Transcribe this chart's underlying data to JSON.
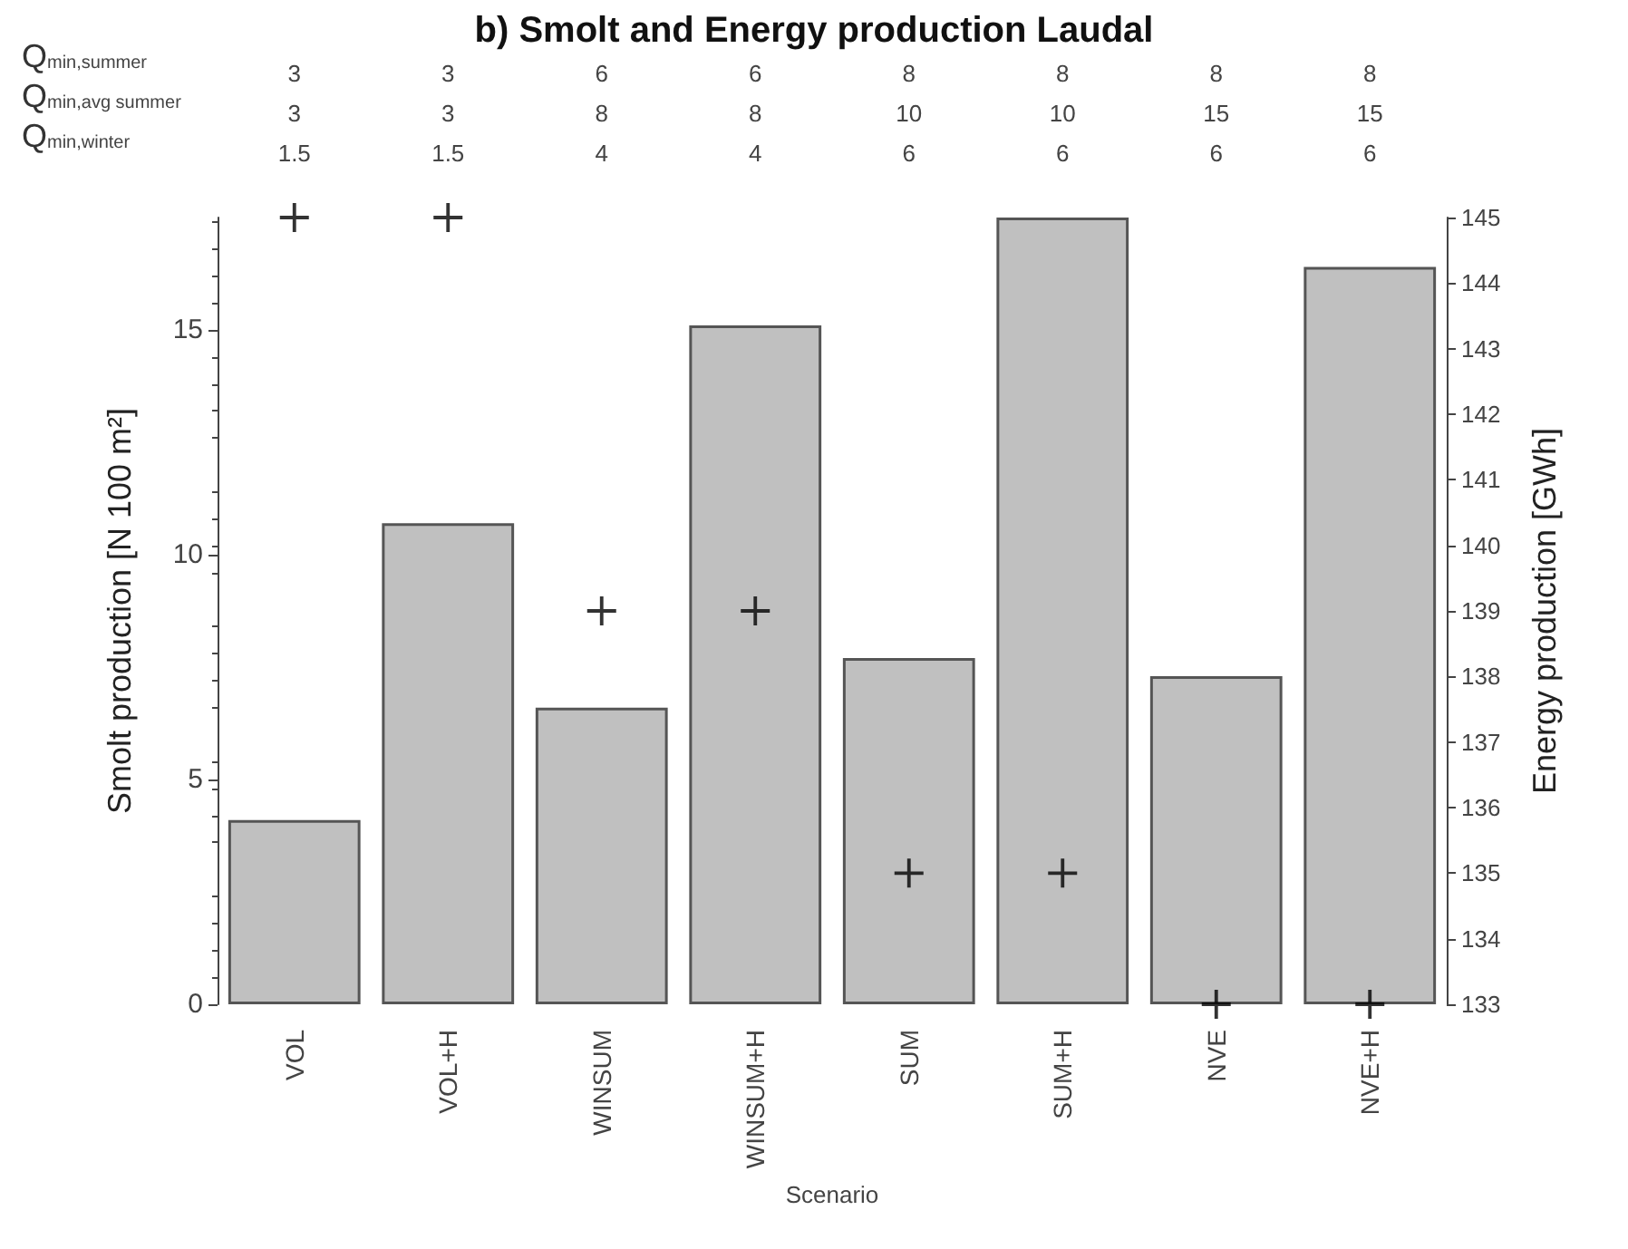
{
  "chart_data": {
    "type": "bar",
    "title": "b) Smolt and Energy production Laudal",
    "xlabel": "Scenario",
    "ylabel": "Smolt production [N 100 m²]",
    "y2label": "Energy production [GWh]",
    "categories": [
      "VOL",
      "VOL+H",
      "WINSUM",
      "WINSUM+H",
      "SUM",
      "SUM+H",
      "NVE",
      "NVE+H"
    ],
    "series": [
      {
        "color": "#c0c0c0",
        "values": [
          4.1,
          10.7,
          6.6,
          15.1,
          7.7,
          17.5,
          7.3,
          16.4
        ]
      },
      {
        "type": "scatter",
        "axis": "y2",
        "color": "#000000",
        "marker": "cross",
        "values": [
          145,
          145,
          139,
          139,
          135,
          135,
          133,
          133
        ]
      }
    ],
    "ylim": [
      0,
      17.5
    ],
    "yticks": [
      0,
      5,
      10,
      15
    ],
    "y2lim": [
      133,
      145
    ],
    "y2ticks": [
      133,
      134,
      135,
      136,
      137,
      138,
      139,
      140,
      141,
      142,
      143,
      144,
      145
    ],
    "grid": false,
    "annotations": [
      "Q$_{min,summer}$",
      "3",
      "3",
      "6",
      "6",
      "8",
      "8",
      "8",
      "8",
      "Q$_{min,avg summer}$",
      "3",
      "3",
      "8",
      "8",
      "10",
      "10",
      "15",
      "15",
      "Q$_{min,winter}$",
      "1.5",
      "1.5",
      "4",
      "4",
      "6",
      "6",
      "6",
      "6"
    ]
  }
}
